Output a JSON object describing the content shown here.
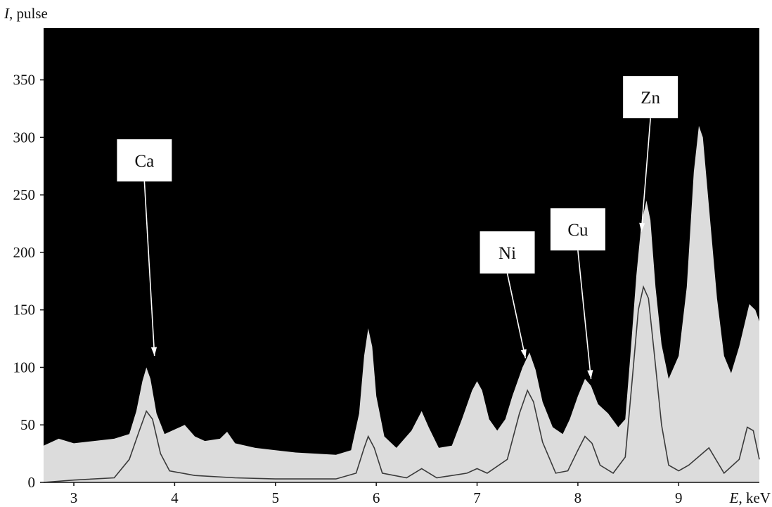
{
  "chart_data": {
    "type": "area",
    "title": "",
    "xlabel_var": "E",
    "xlabel_unit": ", keV",
    "ylabel_var": "I",
    "ylabel_unit": ", pulse",
    "xlim": [
      2.7,
      9.8
    ],
    "ylim": [
      0,
      395
    ],
    "x_ticks": [
      3,
      4,
      5,
      6,
      7,
      8,
      9
    ],
    "y_ticks": [
      0,
      50,
      100,
      150,
      200,
      250,
      300,
      350
    ],
    "grid": false,
    "colors": {
      "background": "#000000",
      "spectrum_fill": "#dcdcdc",
      "overlay_line": "#3a3a3a",
      "callout_box": "#ffffff",
      "arrow": "#ffffff"
    },
    "series": [
      {
        "points": [
          [
            2.7,
            32
          ],
          [
            2.85,
            38
          ],
          [
            3.0,
            34
          ],
          [
            3.2,
            36
          ],
          [
            3.4,
            38
          ],
          [
            3.55,
            42
          ],
          [
            3.62,
            62
          ],
          [
            3.68,
            88
          ],
          [
            3.72,
            100
          ],
          [
            3.76,
            90
          ],
          [
            3.82,
            60
          ],
          [
            3.9,
            42
          ],
          [
            4.0,
            46
          ],
          [
            4.1,
            50
          ],
          [
            4.2,
            40
          ],
          [
            4.3,
            36
          ],
          [
            4.45,
            38
          ],
          [
            4.52,
            44
          ],
          [
            4.6,
            34
          ],
          [
            4.8,
            30
          ],
          [
            5.0,
            28
          ],
          [
            5.2,
            26
          ],
          [
            5.4,
            25
          ],
          [
            5.6,
            24
          ],
          [
            5.75,
            28
          ],
          [
            5.83,
            60
          ],
          [
            5.88,
            110
          ],
          [
            5.92,
            134
          ],
          [
            5.96,
            118
          ],
          [
            6.0,
            75
          ],
          [
            6.08,
            40
          ],
          [
            6.2,
            30
          ],
          [
            6.35,
            45
          ],
          [
            6.45,
            62
          ],
          [
            6.52,
            48
          ],
          [
            6.62,
            30
          ],
          [
            6.75,
            32
          ],
          [
            6.85,
            55
          ],
          [
            6.95,
            80
          ],
          [
            7.0,
            88
          ],
          [
            7.05,
            80
          ],
          [
            7.12,
            55
          ],
          [
            7.2,
            45
          ],
          [
            7.28,
            55
          ],
          [
            7.35,
            75
          ],
          [
            7.45,
            100
          ],
          [
            7.52,
            113
          ],
          [
            7.58,
            98
          ],
          [
            7.65,
            70
          ],
          [
            7.75,
            48
          ],
          [
            7.85,
            42
          ],
          [
            7.92,
            55
          ],
          [
            8.0,
            75
          ],
          [
            8.07,
            90
          ],
          [
            8.13,
            84
          ],
          [
            8.2,
            68
          ],
          [
            8.3,
            60
          ],
          [
            8.4,
            48
          ],
          [
            8.47,
            55
          ],
          [
            8.52,
            110
          ],
          [
            8.58,
            180
          ],
          [
            8.63,
            225
          ],
          [
            8.68,
            245
          ],
          [
            8.72,
            228
          ],
          [
            8.77,
            170
          ],
          [
            8.83,
            120
          ],
          [
            8.9,
            90
          ],
          [
            9.0,
            110
          ],
          [
            9.08,
            170
          ],
          [
            9.15,
            270
          ],
          [
            9.2,
            310
          ],
          [
            9.24,
            300
          ],
          [
            9.3,
            240
          ],
          [
            9.38,
            160
          ],
          [
            9.45,
            110
          ],
          [
            9.52,
            95
          ],
          [
            9.6,
            118
          ],
          [
            9.7,
            155
          ],
          [
            9.76,
            150
          ],
          [
            9.8,
            140
          ]
        ]
      },
      {
        "points": [
          [
            2.7,
            0
          ],
          [
            3.0,
            2
          ],
          [
            3.4,
            4
          ],
          [
            3.55,
            20
          ],
          [
            3.65,
            45
          ],
          [
            3.72,
            62
          ],
          [
            3.78,
            55
          ],
          [
            3.86,
            25
          ],
          [
            3.95,
            10
          ],
          [
            4.2,
            6
          ],
          [
            4.6,
            4
          ],
          [
            5.0,
            3
          ],
          [
            5.6,
            3
          ],
          [
            5.8,
            8
          ],
          [
            5.88,
            30
          ],
          [
            5.92,
            40
          ],
          [
            5.98,
            30
          ],
          [
            6.06,
            8
          ],
          [
            6.3,
            4
          ],
          [
            6.45,
            12
          ],
          [
            6.6,
            4
          ],
          [
            6.9,
            8
          ],
          [
            7.0,
            12
          ],
          [
            7.1,
            8
          ],
          [
            7.3,
            20
          ],
          [
            7.42,
            60
          ],
          [
            7.5,
            80
          ],
          [
            7.56,
            70
          ],
          [
            7.65,
            35
          ],
          [
            7.78,
            8
          ],
          [
            7.9,
            10
          ],
          [
            8.0,
            28
          ],
          [
            8.07,
            40
          ],
          [
            8.14,
            34
          ],
          [
            8.22,
            15
          ],
          [
            8.35,
            8
          ],
          [
            8.47,
            22
          ],
          [
            8.54,
            90
          ],
          [
            8.6,
            150
          ],
          [
            8.65,
            170
          ],
          [
            8.7,
            160
          ],
          [
            8.76,
            110
          ],
          [
            8.83,
            50
          ],
          [
            8.9,
            15
          ],
          [
            9.0,
            10
          ],
          [
            9.1,
            15
          ],
          [
            9.3,
            30
          ],
          [
            9.45,
            8
          ],
          [
            9.6,
            20
          ],
          [
            9.68,
            48
          ],
          [
            9.74,
            45
          ],
          [
            9.8,
            20
          ]
        ]
      }
    ],
    "annotations": [
      {
        "text": "Ca",
        "box_x": 3.7,
        "box_y": 280,
        "arrow_to": [
          3.8,
          110
        ]
      },
      {
        "text": "Ni",
        "box_x": 7.3,
        "box_y": 200,
        "arrow_to": [
          7.48,
          108
        ]
      },
      {
        "text": "Cu",
        "box_x": 8.0,
        "box_y": 220,
        "arrow_to": [
          8.13,
          90
        ]
      },
      {
        "text": "Zn",
        "box_x": 8.72,
        "box_y": 335,
        "arrow_to": [
          8.63,
          218
        ]
      }
    ]
  }
}
